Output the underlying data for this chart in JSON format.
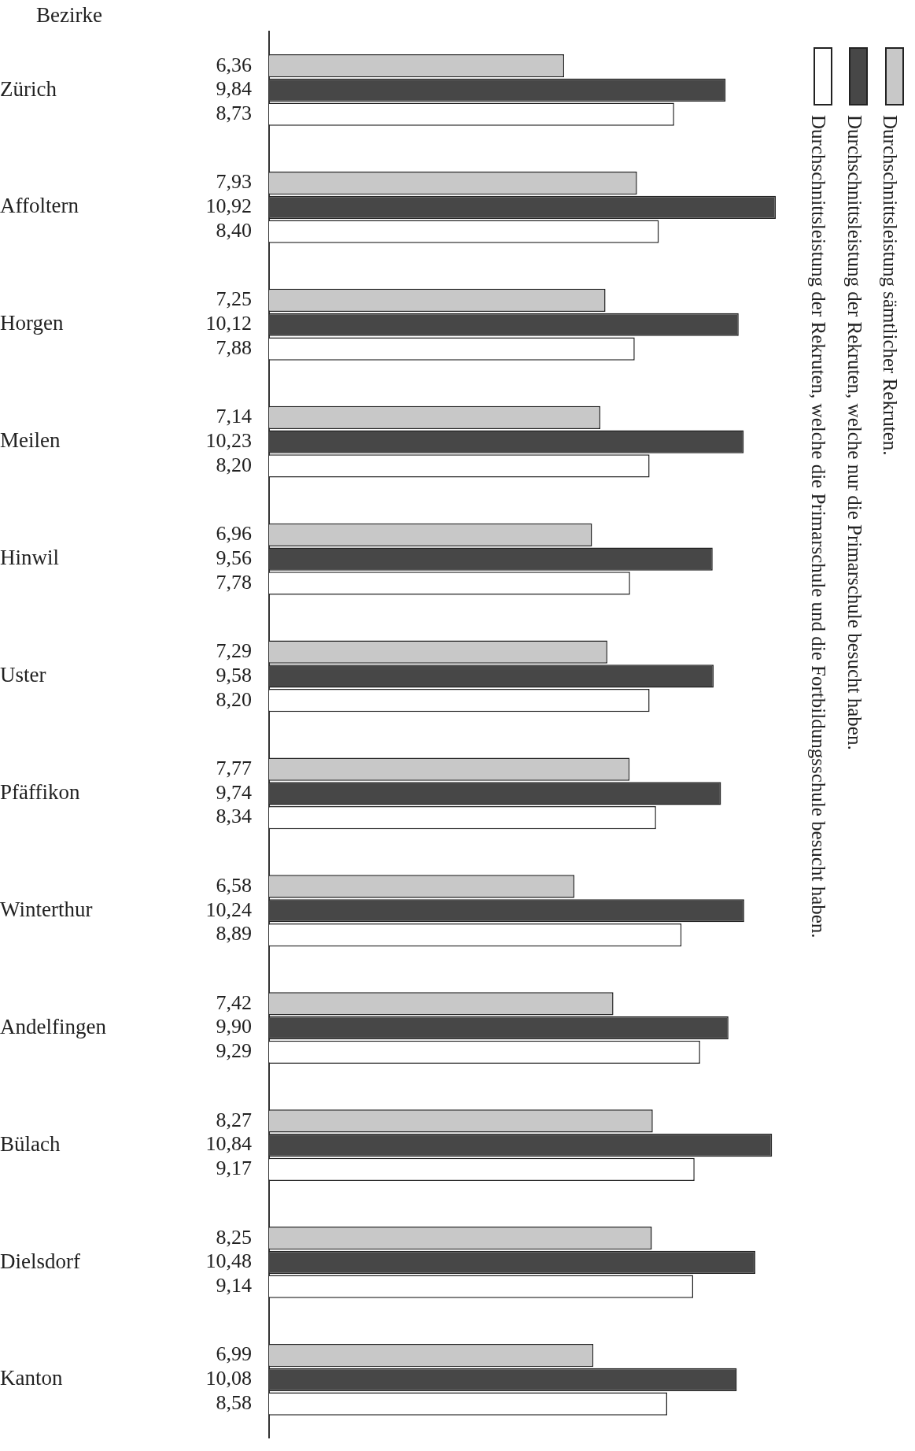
{
  "chart_data": {
    "type": "bar",
    "orientation": "horizontal",
    "ylabel": "Bezirke",
    "categories": [
      "Zürich",
      "Affoltern",
      "Horgen",
      "Meilen",
      "Hinwil",
      "Uster",
      "Pfäffikon",
      "Winterthur",
      "Andelfingen",
      "Bülach",
      "Dielsdorf",
      "Kanton"
    ],
    "series": [
      {
        "name": "Durchschnittsleistung sämtlicher Rekruten.",
        "color": "#c8c8c8",
        "values": [
          6.36,
          7.93,
          7.25,
          7.14,
          6.96,
          7.29,
          7.77,
          6.58,
          7.42,
          8.27,
          8.25,
          6.99
        ],
        "value_labels": [
          "6,36",
          "7,93",
          "7,25",
          "7,14",
          "6,96",
          "7,29",
          "7,77",
          "6,58",
          "7,42",
          "8,27",
          "8,25",
          "6,99"
        ]
      },
      {
        "name": "Durchschnittsleistung der Rekruten, welche nur die Primarschule besucht haben.",
        "color": "#474747",
        "values": [
          9.84,
          10.92,
          10.12,
          10.23,
          9.56,
          9.58,
          9.74,
          10.24,
          9.9,
          10.84,
          10.48,
          10.08
        ],
        "value_labels": [
          "9,84",
          "10,92",
          "10,12",
          "10,23",
          "9,56",
          "9,58",
          "9,74",
          "10,24",
          "9,90",
          "10,84",
          "10,48",
          "10,08"
        ]
      },
      {
        "name": "Durchschnittsleistung der Rekruten, welche die Primarschule und die Fortbildungsschule besucht haben.",
        "color": "#ffffff",
        "values": [
          8.73,
          8.4,
          7.88,
          8.2,
          7.78,
          8.2,
          8.34,
          8.89,
          9.29,
          9.17,
          9.14,
          8.58
        ],
        "value_labels": [
          "8,73",
          "8,40",
          "7,88",
          "8,20",
          "7,78",
          "8,20",
          "8,34",
          "8,89",
          "9,29",
          "9,17",
          "9,14",
          "8,58"
        ]
      }
    ],
    "legend": "right"
  }
}
